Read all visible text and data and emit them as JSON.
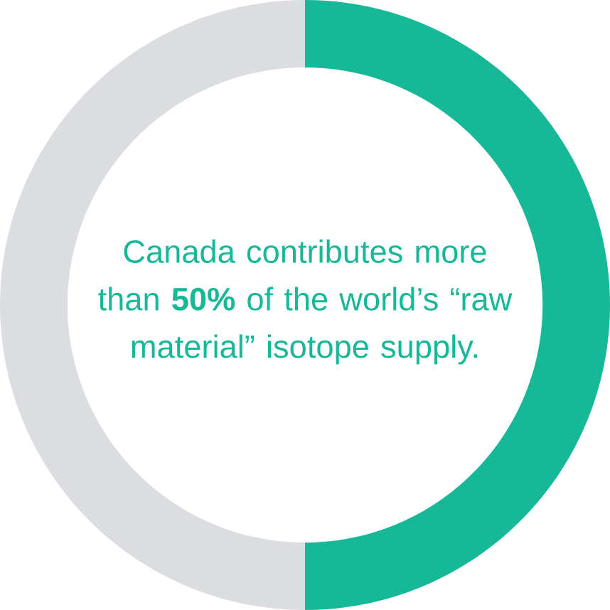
{
  "chart_data": {
    "type": "donut",
    "categories": [
      null,
      null
    ],
    "values": [
      50,
      50
    ],
    "colors": [
      "#17b897",
      "#dcdde0"
    ],
    "annotations": [
      "Canada contributes more than **50%** of the world’s “raw material” isotope supply."
    ]
  }
}
